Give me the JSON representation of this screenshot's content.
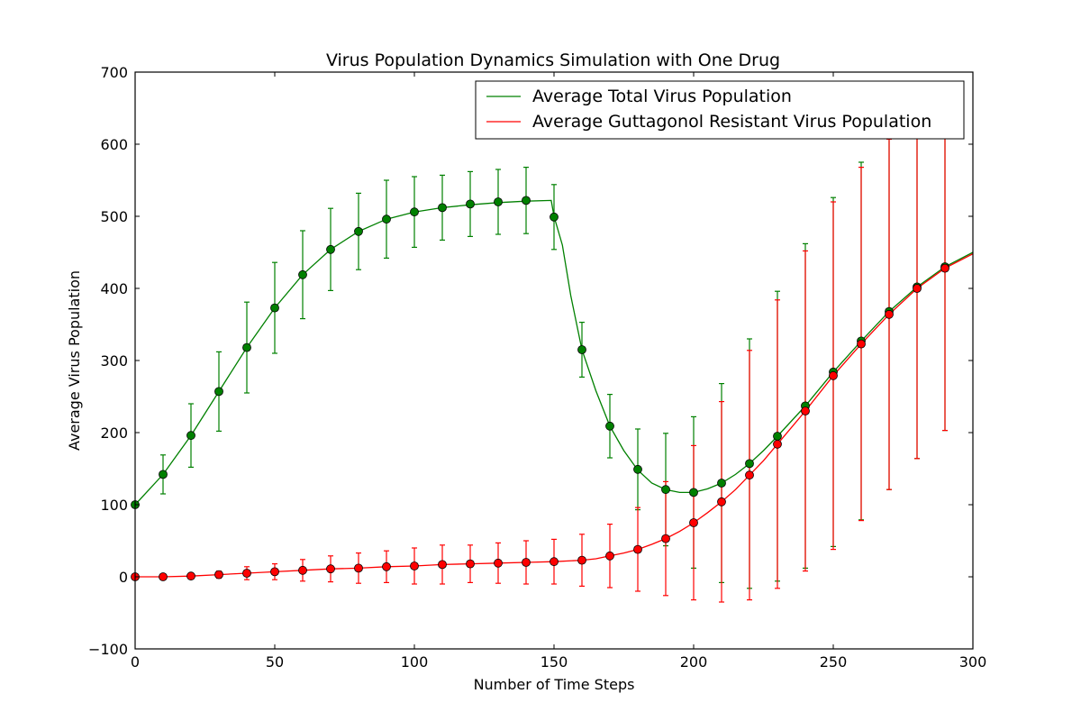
{
  "chart_data": {
    "type": "line",
    "title": "Virus Population Dynamics Simulation with One Drug",
    "xlabel": "Number of Time Steps",
    "ylabel": "Average Virus Population",
    "xlim": [
      0,
      300
    ],
    "ylim": [
      -100,
      700
    ],
    "xticks": [
      0,
      50,
      100,
      150,
      200,
      250,
      300
    ],
    "yticks": [
      -100,
      0,
      100,
      200,
      300,
      400,
      500,
      600,
      700
    ],
    "grid": false,
    "legend_position": "top-right",
    "series": [
      {
        "name": "Average Total Virus Population",
        "color": "#008000",
        "line": [
          [
            0,
            100
          ],
          [
            10,
            142
          ],
          [
            20,
            196
          ],
          [
            30,
            257
          ],
          [
            40,
            318
          ],
          [
            50,
            373
          ],
          [
            60,
            419
          ],
          [
            70,
            454
          ],
          [
            80,
            479
          ],
          [
            90,
            496
          ],
          [
            100,
            506
          ],
          [
            110,
            512
          ],
          [
            120,
            516
          ],
          [
            130,
            519
          ],
          [
            140,
            521
          ],
          [
            149,
            522
          ],
          [
            150,
            500
          ],
          [
            153,
            460
          ],
          [
            156,
            390
          ],
          [
            160,
            315
          ],
          [
            165,
            258
          ],
          [
            170,
            209
          ],
          [
            175,
            175
          ],
          [
            180,
            148
          ],
          [
            185,
            130
          ],
          [
            190,
            121
          ],
          [
            195,
            117
          ],
          [
            200,
            117
          ],
          [
            205,
            122
          ],
          [
            210,
            130
          ],
          [
            215,
            142
          ],
          [
            220,
            157
          ],
          [
            225,
            175
          ],
          [
            230,
            195
          ],
          [
            240,
            237
          ],
          [
            250,
            284
          ],
          [
            260,
            327
          ],
          [
            270,
            368
          ],
          [
            280,
            402
          ],
          [
            290,
            430
          ],
          [
            300,
            450
          ]
        ],
        "markers": {
          "x": [
            0,
            10,
            20,
            30,
            40,
            50,
            60,
            70,
            80,
            90,
            100,
            110,
            120,
            130,
            140,
            150,
            160,
            170,
            180,
            190,
            200,
            210,
            220,
            230,
            240,
            250,
            260,
            270,
            280,
            290
          ],
          "y": [
            100,
            142,
            196,
            257,
            318,
            373,
            419,
            454,
            479,
            496,
            506,
            512,
            517,
            520,
            522,
            499,
            315,
            209,
            149,
            121,
            117,
            130,
            157,
            195,
            237,
            284,
            327,
            368,
            402,
            430
          ],
          "err": [
            0,
            27,
            44,
            55,
            63,
            63,
            61,
            57,
            53,
            54,
            49,
            45,
            45,
            45,
            46,
            45,
            38,
            44,
            56,
            78,
            105,
            138,
            173,
            201,
            225,
            242,
            248,
            247,
            238,
            227
          ]
        }
      },
      {
        "name": "Average Guttagonol Resistant Virus Population",
        "color": "#ff0000",
        "line": [
          [
            0,
            0
          ],
          [
            10,
            0
          ],
          [
            20,
            1
          ],
          [
            30,
            3
          ],
          [
            40,
            5
          ],
          [
            50,
            7
          ],
          [
            60,
            9
          ],
          [
            70,
            11
          ],
          [
            80,
            12
          ],
          [
            90,
            14
          ],
          [
            100,
            15
          ],
          [
            110,
            17
          ],
          [
            120,
            18
          ],
          [
            130,
            19
          ],
          [
            140,
            20
          ],
          [
            150,
            21
          ],
          [
            160,
            23
          ],
          [
            165,
            25
          ],
          [
            170,
            29
          ],
          [
            175,
            33
          ],
          [
            180,
            38
          ],
          [
            185,
            45
          ],
          [
            190,
            53
          ],
          [
            195,
            63
          ],
          [
            200,
            75
          ],
          [
            205,
            89
          ],
          [
            210,
            104
          ],
          [
            215,
            121
          ],
          [
            220,
            141
          ],
          [
            225,
            161
          ],
          [
            230,
            184
          ],
          [
            240,
            230
          ],
          [
            250,
            279
          ],
          [
            260,
            323
          ],
          [
            270,
            364
          ],
          [
            280,
            400
          ],
          [
            290,
            428
          ],
          [
            300,
            448
          ]
        ],
        "markers": {
          "x": [
            0,
            10,
            20,
            30,
            40,
            50,
            60,
            70,
            80,
            90,
            100,
            110,
            120,
            130,
            140,
            150,
            160,
            170,
            180,
            190,
            200,
            210,
            220,
            230,
            240,
            250,
            260,
            270,
            280,
            290
          ],
          "y": [
            0,
            0,
            1,
            3,
            5,
            7,
            9,
            11,
            12,
            14,
            15,
            17,
            18,
            19,
            20,
            21,
            23,
            29,
            38,
            53,
            75,
            104,
            141,
            184,
            230,
            279,
            323,
            364,
            400,
            428
          ],
          "err": [
            0,
            2,
            3,
            5,
            9,
            11,
            15,
            18,
            21,
            22,
            25,
            27,
            26,
            28,
            30,
            31,
            36,
            44,
            58,
            79,
            107,
            139,
            173,
            200,
            222,
            241,
            245,
            243,
            236,
            225
          ]
        }
      }
    ]
  }
}
